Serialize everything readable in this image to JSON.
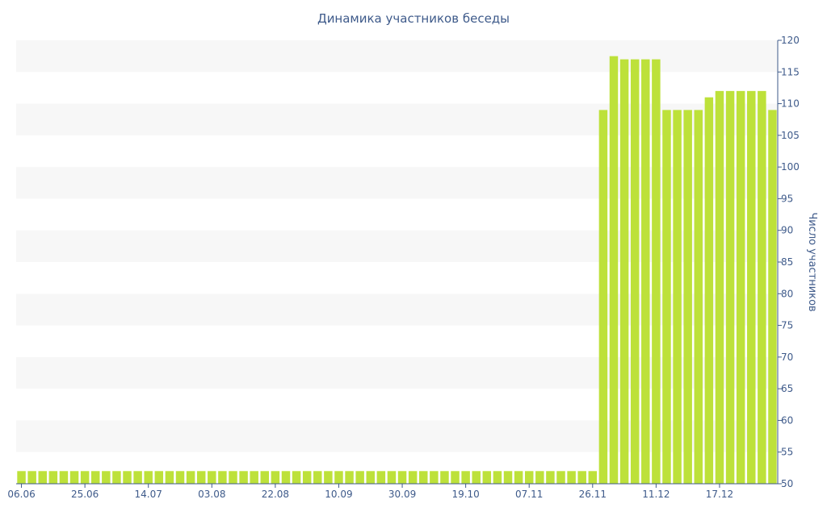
{
  "chart_data": {
    "type": "bar",
    "title": "Динамика участников беседы",
    "xlabel": "",
    "ylabel": "Число участников",
    "ylim": [
      50,
      120
    ],
    "ytick_step": 5,
    "y_axis_position": "right",
    "grid": "alternating horizontal bands",
    "bar_color": "#bde13a",
    "band_color": "#f7f7f7",
    "text_color": "#3e5a8a",
    "x_tick_labels": [
      "06.06",
      "25.06",
      "14.07",
      "03.08",
      "22.08",
      "10.09",
      "30.09",
      "19.10",
      "07.11",
      "26.11",
      "11.12",
      "17.12"
    ],
    "x_tick_bar_index": [
      0,
      6,
      12,
      18,
      24,
      30,
      36,
      42,
      48,
      54,
      60,
      66
    ],
    "values": [
      52,
      52,
      52,
      52,
      52,
      52,
      52,
      52,
      52,
      52,
      52,
      52,
      52,
      52,
      52,
      52,
      52,
      52,
      52,
      52,
      52,
      52,
      52,
      52,
      52,
      52,
      52,
      52,
      52,
      52,
      52,
      52,
      52,
      52,
      52,
      52,
      52,
      52,
      52,
      52,
      52,
      52,
      52,
      52,
      52,
      52,
      52,
      52,
      52,
      52,
      52,
      52,
      52,
      52,
      52,
      109,
      117.5,
      117,
      117,
      117,
      117,
      109,
      109,
      109,
      109,
      111,
      112,
      112,
      112,
      112,
      112,
      109
    ]
  }
}
